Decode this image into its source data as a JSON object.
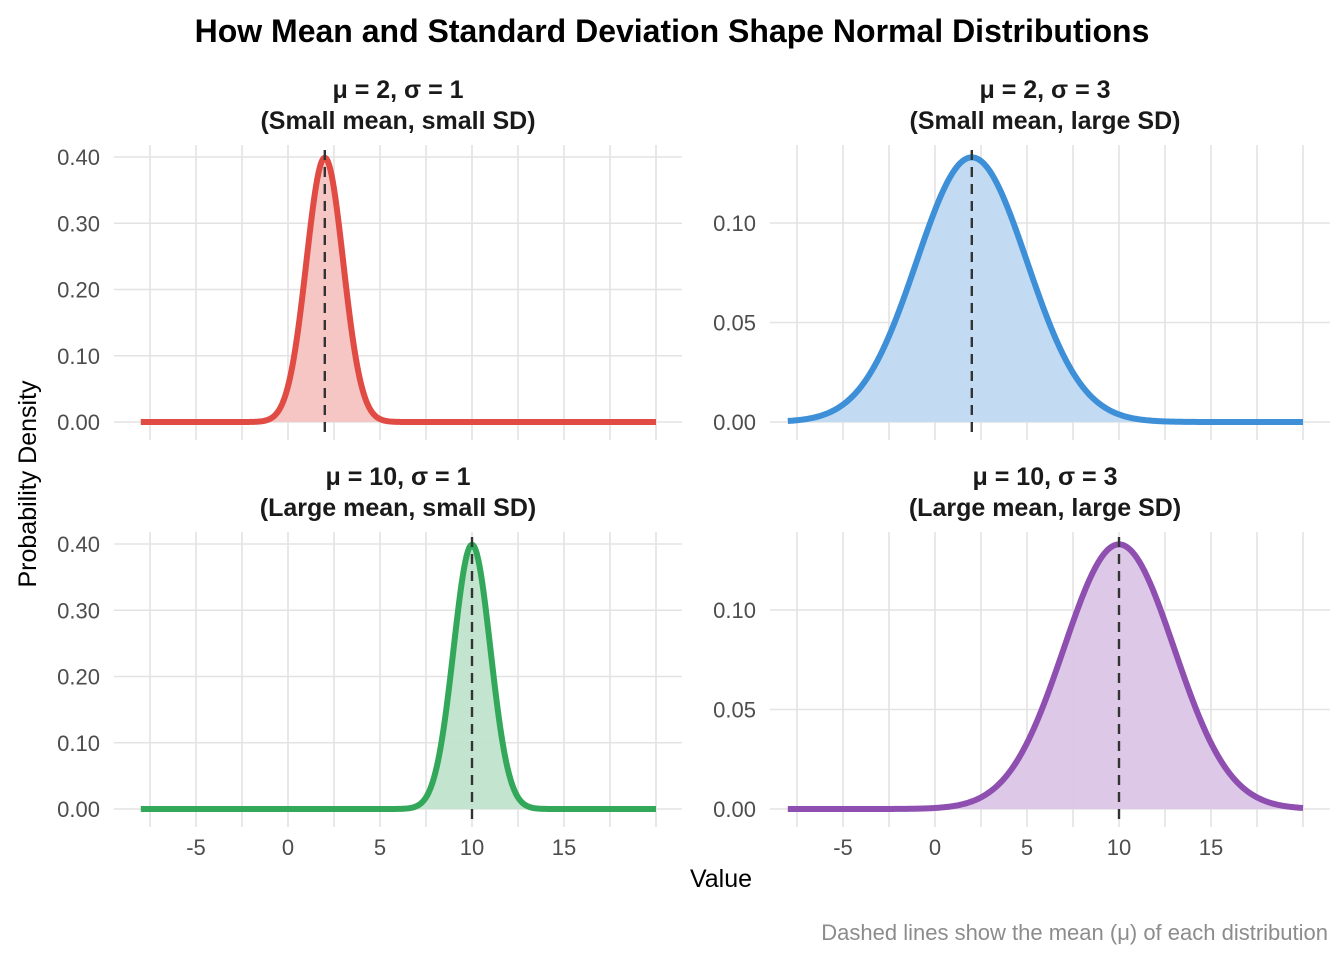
{
  "chart_data": {
    "type": "area",
    "title": "How Mean and Standard Deviation Shape Normal Distributions",
    "xlabel": "Value",
    "ylabel": "Probability Density",
    "caption": "Dashed lines show the mean (μ) of each distribution",
    "xlim": [
      -8,
      20
    ],
    "x_ticks": [
      -5,
      0,
      5,
      10,
      15
    ],
    "grid": true,
    "legend": "none",
    "panels": [
      {
        "title_line1": "μ = 2, σ = 1",
        "title_line2": "(Small mean, small SD)",
        "mean": 2,
        "sd": 1,
        "color": "#e04b44",
        "fill": "#f4c3c1",
        "ylim": [
          0,
          0.4
        ],
        "y_ticks": [
          "0.00",
          "0.10",
          "0.20",
          "0.30",
          "0.40"
        ],
        "y_tick_values": [
          0,
          0.1,
          0.2,
          0.3,
          0.4
        ],
        "peak_density": 0.399
      },
      {
        "title_line1": "μ = 2, σ = 3",
        "title_line2": "(Small mean, large SD)",
        "mean": 2,
        "sd": 3,
        "color": "#3d8fd8",
        "fill": "#bfd9f1",
        "ylim": [
          0,
          0.133
        ],
        "y_ticks": [
          "0.00",
          "0.05",
          "0.10"
        ],
        "y_tick_values": [
          0,
          0.05,
          0.1
        ],
        "peak_density": 0.133
      },
      {
        "title_line1": "μ = 10, σ = 1",
        "title_line2": "(Large mean, small SD)",
        "mean": 10,
        "sd": 1,
        "color": "#34a85a",
        "fill": "#c0e3cb",
        "ylim": [
          0,
          0.4
        ],
        "y_ticks": [
          "0.00",
          "0.10",
          "0.20",
          "0.30",
          "0.40"
        ],
        "y_tick_values": [
          0,
          0.1,
          0.2,
          0.3,
          0.4
        ],
        "peak_density": 0.399
      },
      {
        "title_line1": "μ = 10, σ = 3",
        "title_line2": "(Large mean, large SD)",
        "mean": 10,
        "sd": 3,
        "color": "#8e4fb0",
        "fill": "#dbc6e6",
        "ylim": [
          0,
          0.133
        ],
        "y_ticks": [
          "0.00",
          "0.05",
          "0.10"
        ],
        "y_tick_values": [
          0,
          0.05,
          0.1
        ],
        "peak_density": 0.133
      }
    ]
  }
}
